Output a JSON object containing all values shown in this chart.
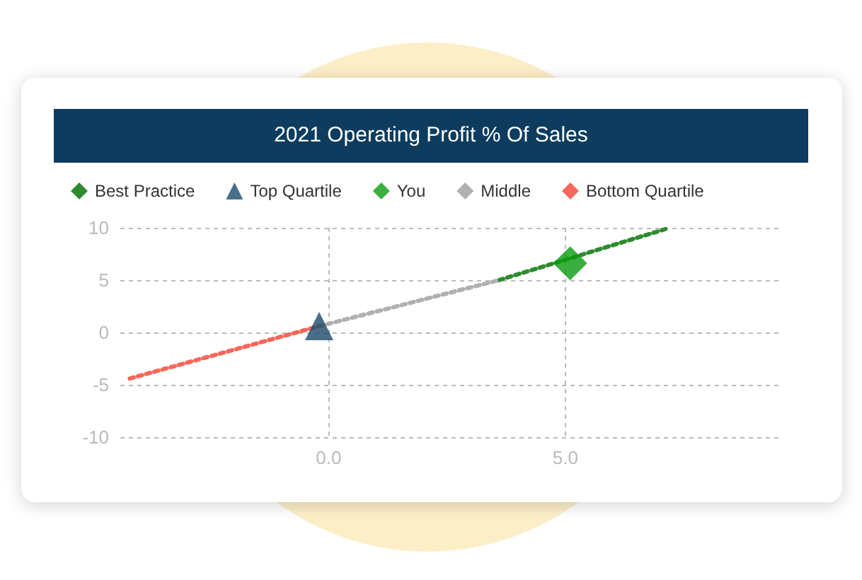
{
  "chart_data": {
    "type": "line",
    "title": "2021 Operating Profit % Of Sales",
    "series": [
      {
        "name": "Best Practice",
        "color": "#2e8b2e",
        "marker": "none",
        "line_style": "dotted",
        "x": [
          3.6,
          7.2
        ],
        "values": [
          5,
          10
        ]
      },
      {
        "name": "Top Quartile",
        "type": "scatter",
        "color": "#1b4a6b",
        "marker": "triangle",
        "x": [
          -0.2
        ],
        "values": [
          0.6
        ]
      },
      {
        "name": "You",
        "type": "scatter",
        "color": "#099b0f",
        "marker": "diamond",
        "x": [
          5.1
        ],
        "values": [
          6.6
        ]
      },
      {
        "name": "Middle",
        "color": "#b0b0b0",
        "marker": "none",
        "line_style": "dotted",
        "x": [
          -0.2,
          3.6
        ],
        "values": [
          0.6,
          5
        ]
      },
      {
        "name": "Bottom Quartile",
        "color": "#f7675a",
        "marker": "none",
        "line_style": "dotted",
        "x": [
          -4.2,
          -0.2
        ],
        "values": [
          -4.4,
          0.6
        ]
      }
    ],
    "xlim": [
      -4.4,
      9.5
    ],
    "xticks": [
      {
        "value": 0,
        "label": "0.0"
      },
      {
        "value": 5,
        "label": "5.0"
      }
    ],
    "ylim": [
      -10,
      10
    ],
    "yticks": [
      -10,
      -5,
      0,
      5,
      10
    ],
    "grid": true,
    "legend": "top"
  }
}
